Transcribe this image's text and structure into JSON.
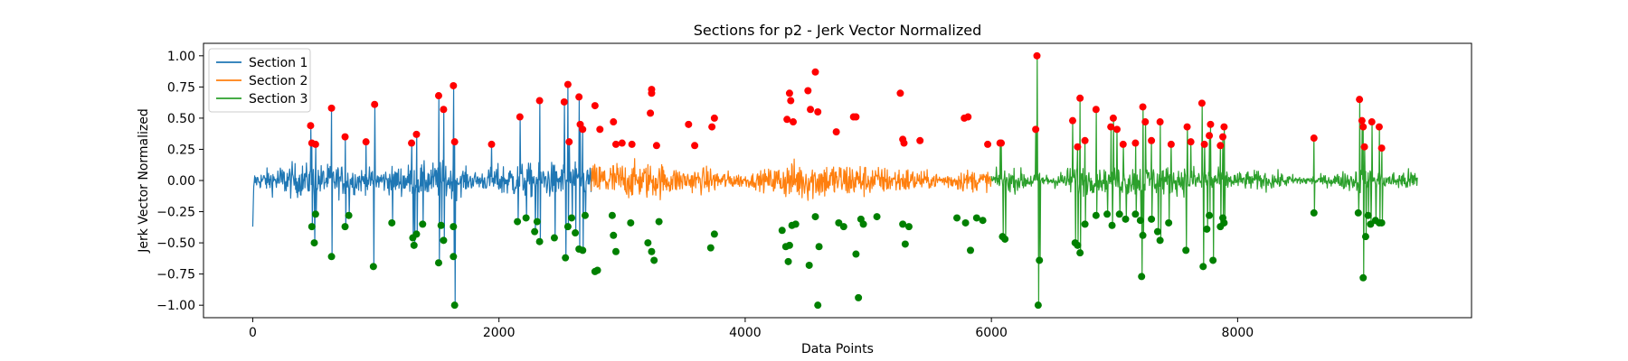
{
  "chart_data": {
    "type": "line",
    "title": "Sections for p2 - Jerk Vector Normalized",
    "xlabel": "Data Points",
    "ylabel": "Jerk Vector Normalized",
    "xlim": [
      -400,
      9900
    ],
    "ylim": [
      -1.1,
      1.1
    ],
    "xticks": [
      0,
      2000,
      4000,
      6000,
      8000
    ],
    "xtick_labels": [
      "0",
      "2000",
      "4000",
      "6000",
      "8000"
    ],
    "yticks": [
      -1.0,
      -0.75,
      -0.5,
      -0.25,
      0.0,
      0.25,
      0.5,
      0.75,
      1.0
    ],
    "ytick_labels": [
      "−1.00",
      "−0.75",
      "−0.50",
      "−0.25",
      "0.00",
      "0.25",
      "0.50",
      "0.75",
      "1.00"
    ],
    "grid": false,
    "legend_position": "top-left",
    "peak_color": "#ff0000",
    "trough_color": "#008000",
    "series": [
      {
        "name": "Section 1",
        "color": "#1f77b4",
        "x_range": [
          0,
          2750
        ],
        "peaks": [
          [
            470,
            0.44
          ],
          [
            480,
            0.3
          ],
          [
            510,
            0.29
          ],
          [
            640,
            0.58
          ],
          [
            750,
            0.35
          ],
          [
            920,
            0.31
          ],
          [
            990,
            0.61
          ],
          [
            1290,
            0.3
          ],
          [
            1330,
            0.37
          ],
          [
            1510,
            0.68
          ],
          [
            1550,
            0.57
          ],
          [
            1630,
            0.76
          ],
          [
            1640,
            0.31
          ],
          [
            1940,
            0.29
          ],
          [
            2170,
            0.51
          ],
          [
            2330,
            0.64
          ],
          [
            2530,
            0.63
          ],
          [
            2560,
            0.77
          ],
          [
            2570,
            0.31
          ],
          [
            2650,
            0.67
          ],
          [
            2660,
            0.45
          ],
          [
            2680,
            0.41
          ]
        ],
        "troughs": [
          [
            480,
            -0.37
          ],
          [
            500,
            -0.5
          ],
          [
            510,
            -0.27
          ],
          [
            640,
            -0.61
          ],
          [
            750,
            -0.37
          ],
          [
            780,
            -0.28
          ],
          [
            980,
            -0.69
          ],
          [
            1130,
            -0.34
          ],
          [
            1300,
            -0.46
          ],
          [
            1310,
            -0.52
          ],
          [
            1330,
            -0.43
          ],
          [
            1380,
            -0.35
          ],
          [
            1510,
            -0.66
          ],
          [
            1530,
            -0.36
          ],
          [
            1550,
            -0.48
          ],
          [
            1640,
            -1.0
          ],
          [
            1630,
            -0.37
          ],
          [
            1630,
            -0.61
          ],
          [
            2150,
            -0.33
          ],
          [
            2220,
            -0.3
          ],
          [
            2290,
            -0.41
          ],
          [
            2310,
            -0.33
          ],
          [
            2330,
            -0.49
          ],
          [
            2450,
            -0.46
          ],
          [
            2540,
            -0.62
          ],
          [
            2560,
            -0.37
          ],
          [
            2590,
            -0.3
          ],
          [
            2620,
            -0.42
          ],
          [
            2650,
            -0.55
          ],
          [
            2680,
            -0.56
          ],
          [
            2700,
            -0.28
          ]
        ]
      },
      {
        "name": "Section 2",
        "color": "#ff7f0e",
        "x_range": [
          2750,
          6000
        ],
        "peaks": [
          [
            2780,
            0.6
          ],
          [
            2820,
            0.41
          ],
          [
            2930,
            0.47
          ],
          [
            2950,
            0.29
          ],
          [
            3000,
            0.3
          ],
          [
            3080,
            0.29
          ],
          [
            3230,
            0.54
          ],
          [
            3240,
            0.73
          ],
          [
            3240,
            0.7
          ],
          [
            3280,
            0.28
          ],
          [
            3540,
            0.45
          ],
          [
            3590,
            0.28
          ],
          [
            3730,
            0.43
          ],
          [
            3750,
            0.5
          ],
          [
            4340,
            0.49
          ],
          [
            4360,
            0.7
          ],
          [
            4370,
            0.64
          ],
          [
            4390,
            0.47
          ],
          [
            4510,
            0.72
          ],
          [
            4530,
            0.57
          ],
          [
            4570,
            0.87
          ],
          [
            4590,
            0.55
          ],
          [
            4740,
            0.39
          ],
          [
            4880,
            0.51
          ],
          [
            4900,
            0.51
          ],
          [
            5260,
            0.7
          ],
          [
            5280,
            0.33
          ],
          [
            5290,
            0.3
          ],
          [
            5420,
            0.32
          ],
          [
            5780,
            0.5
          ],
          [
            5810,
            0.51
          ]
        ],
        "troughs": [
          [
            2780,
            -0.73
          ],
          [
            2800,
            -0.72
          ],
          [
            2920,
            -0.28
          ],
          [
            2930,
            -0.44
          ],
          [
            2950,
            -0.57
          ],
          [
            3070,
            -0.34
          ],
          [
            3210,
            -0.5
          ],
          [
            3240,
            -0.57
          ],
          [
            3260,
            -0.64
          ],
          [
            3300,
            -0.33
          ],
          [
            3720,
            -0.54
          ],
          [
            3750,
            -0.43
          ],
          [
            4300,
            -0.4
          ],
          [
            4330,
            -0.53
          ],
          [
            4350,
            -0.65
          ],
          [
            4360,
            -0.52
          ],
          [
            4380,
            -0.36
          ],
          [
            4410,
            -0.35
          ],
          [
            4520,
            -0.68
          ],
          [
            4570,
            -0.29
          ],
          [
            4590,
            -1.0
          ],
          [
            4600,
            -0.53
          ],
          [
            4760,
            -0.34
          ],
          [
            4800,
            -0.37
          ],
          [
            4900,
            -0.59
          ],
          [
            4920,
            -0.94
          ],
          [
            4940,
            -0.31
          ],
          [
            4960,
            -0.35
          ],
          [
            5070,
            -0.29
          ],
          [
            5280,
            -0.35
          ],
          [
            5300,
            -0.51
          ],
          [
            5330,
            -0.37
          ],
          [
            5720,
            -0.3
          ],
          [
            5790,
            -0.34
          ],
          [
            5830,
            -0.56
          ],
          [
            5880,
            -0.3
          ],
          [
            5930,
            -0.32
          ]
        ]
      },
      {
        "name": "Section 3",
        "color": "#2ca02c",
        "x_range": [
          6000,
          9460
        ],
        "peaks": [
          [
            5970,
            0.29
          ],
          [
            6070,
            0.3
          ],
          [
            6080,
            0.3
          ],
          [
            6360,
            0.41
          ],
          [
            6370,
            1.0
          ],
          [
            6660,
            0.48
          ],
          [
            6700,
            0.27
          ],
          [
            6720,
            0.66
          ],
          [
            6760,
            0.32
          ],
          [
            6850,
            0.57
          ],
          [
            6970,
            0.43
          ],
          [
            6990,
            0.5
          ],
          [
            7020,
            0.41
          ],
          [
            7070,
            0.29
          ],
          [
            7170,
            0.3
          ],
          [
            7230,
            0.59
          ],
          [
            7250,
            0.47
          ],
          [
            7300,
            0.32
          ],
          [
            7370,
            0.47
          ],
          [
            7460,
            0.29
          ],
          [
            7590,
            0.43
          ],
          [
            7620,
            0.31
          ],
          [
            7710,
            0.62
          ],
          [
            7730,
            0.29
          ],
          [
            7770,
            0.36
          ],
          [
            7780,
            0.45
          ],
          [
            7860,
            0.28
          ],
          [
            7880,
            0.35
          ],
          [
            7890,
            0.43
          ],
          [
            8620,
            0.34
          ],
          [
            8990,
            0.65
          ],
          [
            9010,
            0.48
          ],
          [
            9020,
            0.43
          ],
          [
            9030,
            0.27
          ],
          [
            9090,
            0.47
          ],
          [
            9150,
            0.43
          ],
          [
            9170,
            0.26
          ]
        ],
        "troughs": [
          [
            6090,
            -0.45
          ],
          [
            6110,
            -0.47
          ],
          [
            6380,
            -1.0
          ],
          [
            6390,
            -0.64
          ],
          [
            6680,
            -0.5
          ],
          [
            6700,
            -0.52
          ],
          [
            6720,
            -0.58
          ],
          [
            6760,
            -0.35
          ],
          [
            6850,
            -0.28
          ],
          [
            6940,
            -0.27
          ],
          [
            6980,
            -0.36
          ],
          [
            7040,
            -0.27
          ],
          [
            7090,
            -0.31
          ],
          [
            7170,
            -0.27
          ],
          [
            7210,
            -0.32
          ],
          [
            7220,
            -0.77
          ],
          [
            7230,
            -0.44
          ],
          [
            7300,
            -0.31
          ],
          [
            7350,
            -0.41
          ],
          [
            7370,
            -0.48
          ],
          [
            7440,
            -0.34
          ],
          [
            7580,
            -0.56
          ],
          [
            7720,
            -0.69
          ],
          [
            7750,
            -0.39
          ],
          [
            7770,
            -0.28
          ],
          [
            7800,
            -0.64
          ],
          [
            7860,
            -0.37
          ],
          [
            7880,
            -0.3
          ],
          [
            7890,
            -0.34
          ],
          [
            8620,
            -0.26
          ],
          [
            8980,
            -0.26
          ],
          [
            9020,
            -0.78
          ],
          [
            9040,
            -0.45
          ],
          [
            9060,
            -0.28
          ],
          [
            9080,
            -0.35
          ],
          [
            9120,
            -0.32
          ],
          [
            9150,
            -0.34
          ],
          [
            9170,
            -0.34
          ]
        ]
      }
    ]
  }
}
